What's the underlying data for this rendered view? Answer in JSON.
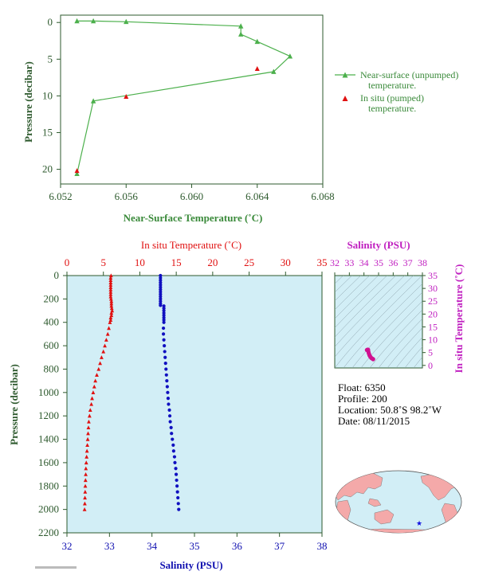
{
  "chart_data": [
    {
      "type": "line",
      "xlabel": "Near-Surface Temperature (˚C)",
      "ylabel": "Pressure (decibar)",
      "xlim": [
        6.052,
        6.068
      ],
      "ylim": [
        22,
        -1
      ],
      "xticks": [
        "6.052",
        "6.056",
        "6.060",
        "6.064",
        "6.068"
      ],
      "yticks": [
        "0",
        "5",
        "10",
        "15",
        "20"
      ],
      "xtick_values": [
        6.052,
        6.056,
        6.06,
        6.064,
        6.068
      ],
      "ytick_values": [
        0,
        5,
        10,
        15,
        20
      ],
      "colors": {
        "unpumped": "#4cb04c",
        "pumped": "#e01010",
        "axis": "#2e5a2e",
        "label": "#3a8a3a"
      },
      "series": [
        {
          "name": "Near-surface (unpumped) temperature.",
          "marker": "triangle",
          "line": true,
          "x": [
            6.053,
            6.054,
            6.056,
            6.063,
            6.063,
            6.064,
            6.066,
            6.065,
            6.054,
            6.053
          ],
          "y": [
            -0.2,
            -0.2,
            -0.1,
            0.5,
            1.6,
            2.6,
            4.6,
            6.7,
            10.7,
            20.6
          ]
        },
        {
          "name": "In situ (pumped) temperature.",
          "marker": "triangle",
          "line": false,
          "x": [
            6.064,
            6.056,
            6.053
          ],
          "y": [
            6.3,
            10.1,
            20.2
          ]
        }
      ]
    },
    {
      "type": "scatter",
      "ylabel": "Pressure (decibar)",
      "ylim": [
        2200,
        0
      ],
      "yticks": [
        "0",
        "200",
        "400",
        "600",
        "800",
        "1000",
        "1200",
        "1400",
        "1600",
        "1800",
        "2000",
        "2200"
      ],
      "ytick_values": [
        0,
        200,
        400,
        600,
        800,
        1000,
        1200,
        1400,
        1600,
        1800,
        2000,
        2200
      ],
      "top_axis": {
        "label": "In situ Temperature (˚C)",
        "range": [
          0,
          35
        ],
        "ticks": [
          "0",
          "5",
          "10",
          "15",
          "20",
          "25",
          "30",
          "35"
        ],
        "tick_values": [
          0,
          5,
          10,
          15,
          20,
          25,
          30,
          35
        ],
        "color": "#e01010"
      },
      "bottom_axis": {
        "label": "Salinity (PSU)",
        "range": [
          32,
          38
        ],
        "ticks": [
          "32",
          "33",
          "34",
          "35",
          "36",
          "37",
          "38"
        ],
        "tick_values": [
          32,
          33,
          34,
          35,
          36,
          37,
          38
        ],
        "color": "#1010b0"
      },
      "background": "#d2eef6",
      "temperature": {
        "pressure": [
          0,
          20,
          40,
          60,
          80,
          100,
          120,
          140,
          160,
          180,
          200,
          220,
          240,
          260,
          280,
          300,
          320,
          340,
          360,
          380,
          400,
          450,
          500,
          550,
          600,
          650,
          700,
          750,
          800,
          850,
          900,
          950,
          1000,
          1050,
          1100,
          1150,
          1200,
          1250,
          1300,
          1350,
          1400,
          1450,
          1500,
          1550,
          1600,
          1650,
          1700,
          1750,
          1800,
          1850,
          1900,
          1950,
          2000
        ],
        "values": [
          6.05,
          6.0,
          6.0,
          6.0,
          6.0,
          6.0,
          6.0,
          6.0,
          6.0,
          6.0,
          6.05,
          6.1,
          6.1,
          6.1,
          6.15,
          6.2,
          6.1,
          6.1,
          6.0,
          6.0,
          5.9,
          5.75,
          5.6,
          5.4,
          5.2,
          5.0,
          4.75,
          4.55,
          4.35,
          4.1,
          3.9,
          3.75,
          3.6,
          3.45,
          3.35,
          3.2,
          3.1,
          3.0,
          2.95,
          2.9,
          2.85,
          2.8,
          2.75,
          2.7,
          2.65,
          2.6,
          2.58,
          2.55,
          2.52,
          2.5,
          2.47,
          2.45,
          2.42
        ]
      },
      "salinity": {
        "pressure": [
          0,
          20,
          40,
          60,
          80,
          100,
          120,
          140,
          160,
          180,
          200,
          220,
          240,
          255,
          260,
          280,
          300,
          320,
          340,
          360,
          380,
          400,
          450,
          500,
          550,
          600,
          650,
          700,
          750,
          800,
          850,
          900,
          950,
          1000,
          1050,
          1100,
          1150,
          1200,
          1250,
          1300,
          1350,
          1400,
          1450,
          1500,
          1550,
          1600,
          1650,
          1700,
          1750,
          1800,
          1850,
          1900,
          1950,
          2000
        ],
        "values": [
          34.2,
          34.2,
          34.2,
          34.2,
          34.2,
          34.2,
          34.2,
          34.2,
          34.2,
          34.2,
          34.2,
          34.2,
          34.2,
          34.2,
          34.28,
          34.28,
          34.28,
          34.28,
          34.28,
          34.28,
          34.28,
          34.28,
          34.27,
          34.27,
          34.28,
          34.29,
          34.3,
          34.31,
          34.32,
          34.33,
          34.34,
          34.35,
          34.36,
          34.37,
          34.38,
          34.39,
          34.41,
          34.42,
          34.43,
          34.45,
          34.46,
          34.48,
          34.5,
          34.51,
          34.53,
          34.54,
          34.56,
          34.57,
          34.58,
          34.59,
          34.6,
          34.61,
          34.62,
          34.63
        ]
      }
    },
    {
      "type": "scatter",
      "title": "Salinity (PSU)",
      "ylabel": "In situ Temperature (˚C)",
      "xlim": [
        32,
        38
      ],
      "ylim": [
        -1,
        35
      ],
      "xticks": [
        "32",
        "33",
        "34",
        "35",
        "36",
        "37",
        "38"
      ],
      "xtick_values": [
        32,
        33,
        34,
        35,
        36,
        37,
        38
      ],
      "yticks": [
        "0",
        "5",
        "10",
        "15",
        "20",
        "25",
        "30",
        "35"
      ],
      "ytick_values": [
        0,
        5,
        10,
        15,
        20,
        25,
        30,
        35
      ],
      "color": "#d01090",
      "background": "#d2eef6",
      "x": [
        34.2,
        34.22,
        34.25,
        34.28,
        34.28,
        34.3,
        34.32,
        34.35,
        34.38,
        34.42,
        34.46,
        34.5,
        34.55,
        34.6,
        34.63
      ],
      "y": [
        6.0,
        6.05,
        6.1,
        6.15,
        5.9,
        5.4,
        4.9,
        4.4,
        3.9,
        3.5,
        3.2,
        2.9,
        2.7,
        2.55,
        2.42
      ]
    }
  ],
  "float_info": {
    "float": "Float:  6350",
    "profile": "Profile:  200",
    "location": "Location:  50.8˚S  98.2˚W",
    "date": "Date:  08/11/2015"
  },
  "map": {
    "land_color": "#f4a9a9",
    "ocean_color": "#d2eef6",
    "marker_color": "#1010e0",
    "float_lon": -98.2,
    "float_lat": -50.8
  }
}
